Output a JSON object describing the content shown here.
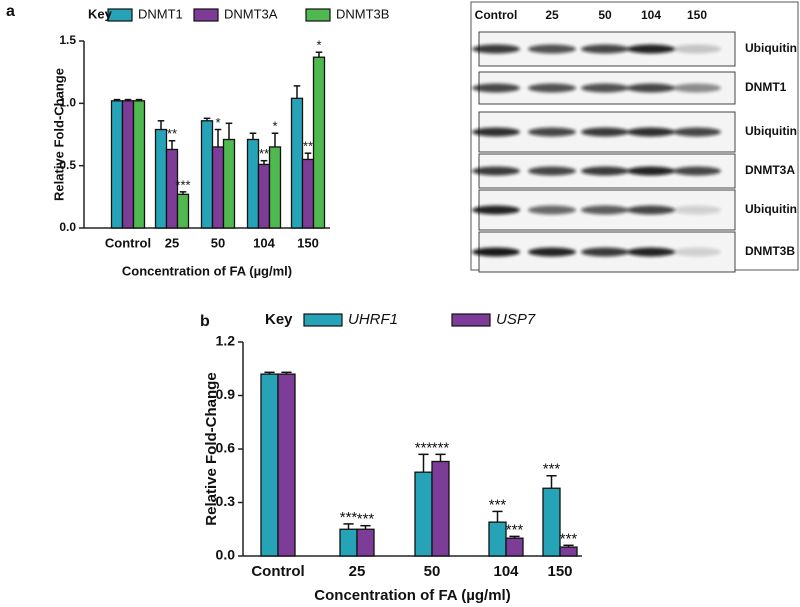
{
  "panel_labels": [
    "a",
    "b"
  ],
  "chart_data": [
    {
      "type": "bar",
      "legend_title": "Key",
      "xlabel": "Concentration of FA (µg/ml)",
      "ylabel": "Relative Fold-Change",
      "categories": [
        "Control",
        "25",
        "50",
        "104",
        "150"
      ],
      "ylim": [
        0,
        1.5
      ],
      "yticks": [
        {
          "value": 0,
          "label": "0.0"
        },
        0.5,
        {
          "value": 1,
          "label": "1.0"
        },
        1.5
      ],
      "series": [
        {
          "name": "DNMT1",
          "color": "#27a3b7",
          "values": [
            1.02,
            0.79,
            0.86,
            0.71,
            1.04
          ],
          "errors": [
            0.01,
            0.07,
            0.02,
            0.05,
            0.1
          ],
          "annotations": [
            null,
            null,
            null,
            null,
            null
          ]
        },
        {
          "name": "DNMT3A",
          "color": "#7d3c97",
          "values": [
            1.02,
            0.63,
            0.65,
            0.51,
            0.55
          ],
          "errors": [
            0.01,
            0.07,
            0.14,
            0.03,
            0.05
          ],
          "annotations": [
            null,
            "**",
            "*",
            "**",
            "**"
          ]
        },
        {
          "name": "DNMT3B",
          "color": "#4fb84f",
          "values": [
            1.02,
            0.27,
            0.71,
            0.65,
            1.37
          ],
          "errors": [
            0.01,
            0.02,
            0.13,
            0.11,
            0.04
          ],
          "annotations": [
            null,
            "***",
            null,
            "*",
            "*"
          ]
        }
      ]
    },
    {
      "type": "bar",
      "legend_title": "Key",
      "xlabel": "Concentration of FA (µg/ml)",
      "ylabel": "Relative Fold-Change",
      "categories": [
        "Control",
        "25",
        "50",
        "104",
        "150"
      ],
      "ylim": [
        0,
        1.2
      ],
      "yticks": [
        {
          "value": 0,
          "label": "0.0"
        },
        0.3,
        0.6,
        0.9,
        1.2
      ],
      "series": [
        {
          "name": "UHRF1",
          "color": "#27a3b7",
          "values": [
            1.02,
            0.15,
            0.47,
            0.19,
            0.38
          ],
          "errors": [
            0.01,
            0.03,
            0.1,
            0.06,
            0.07
          ],
          "annotations": [
            null,
            "***",
            "***",
            "***",
            "***"
          ]
        },
        {
          "name": "USP7",
          "color": "#7d3c97",
          "values": [
            1.02,
            0.15,
            0.53,
            0.1,
            0.05
          ],
          "errors": [
            0.01,
            0.02,
            0.04,
            0.01,
            0.01
          ],
          "annotations": [
            null,
            "***",
            "***",
            "***",
            "***"
          ]
        }
      ]
    }
  ],
  "blot": {
    "lanes": [
      "Control",
      "25",
      "50",
      "104",
      "150"
    ],
    "bands": [
      "Ubiquitin",
      "DNMT1",
      "Ubiquitin",
      "DNMT3A",
      "Ubiquitin",
      "DNMT3B"
    ]
  }
}
